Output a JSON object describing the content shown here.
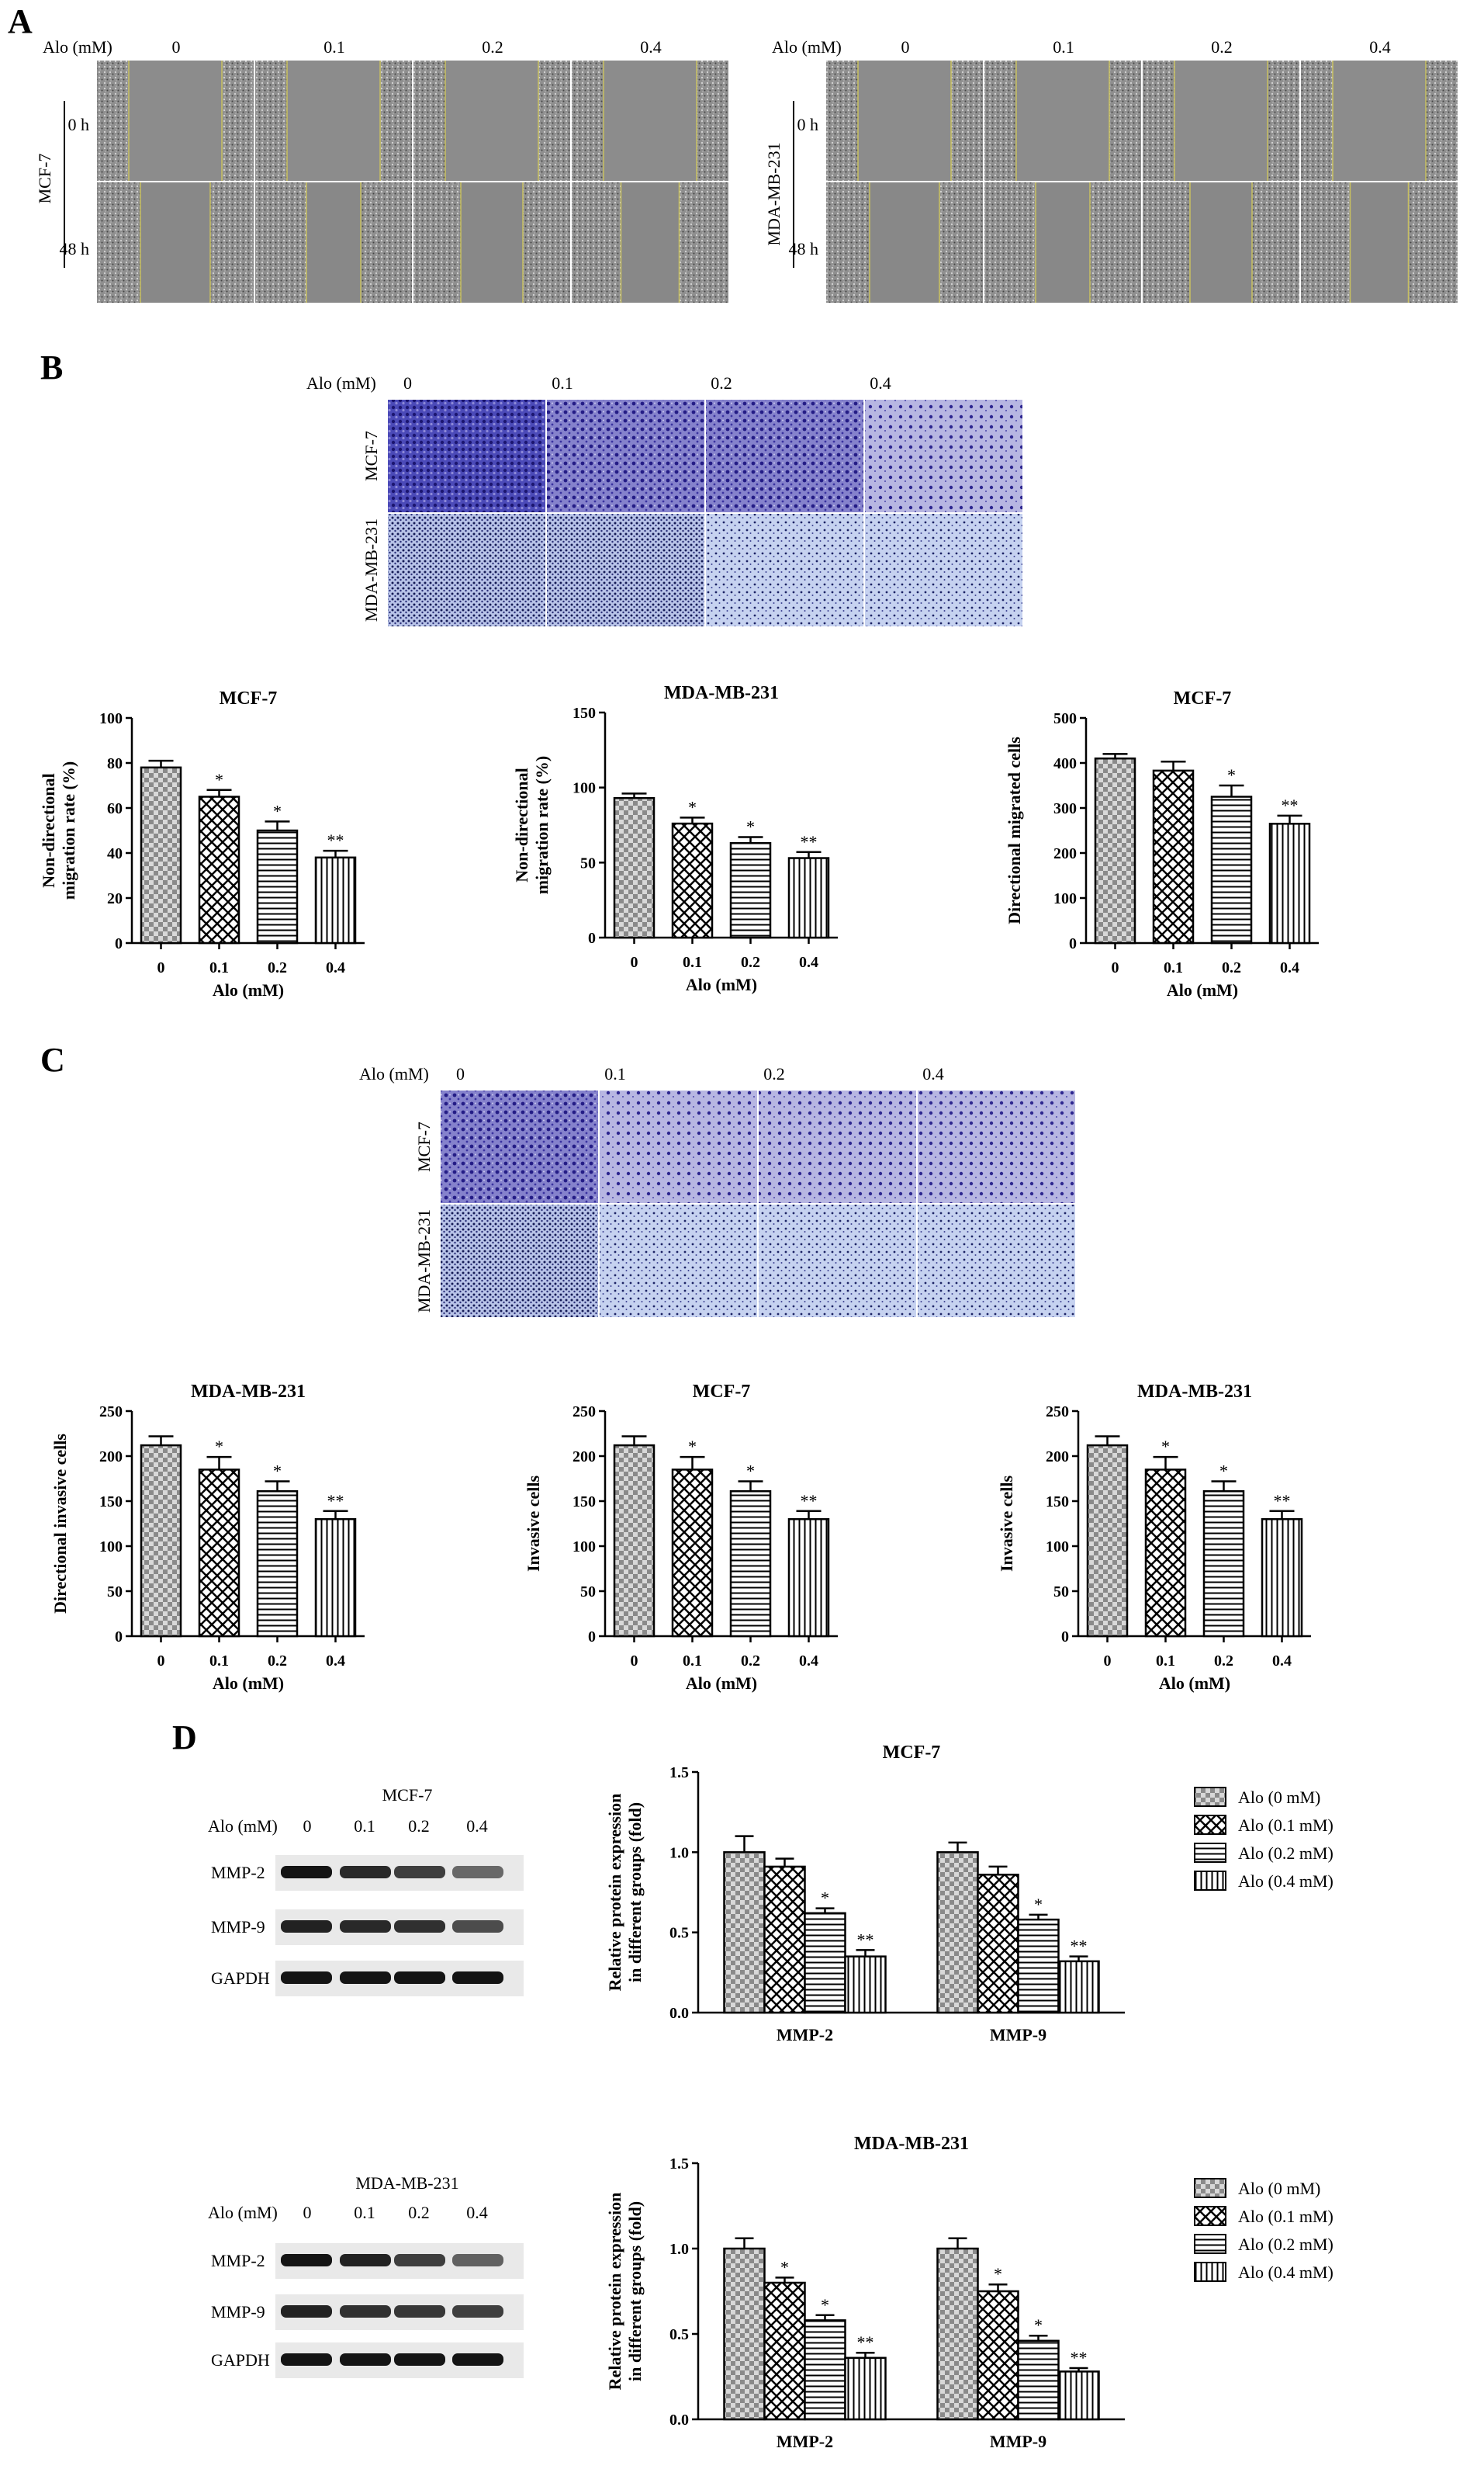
{
  "panels": {
    "A": {
      "letter": "A",
      "dose_label": "Alo (mM)",
      "doses": [
        "0",
        "0.1",
        "0.2",
        "0.4"
      ],
      "time_labels": [
        "0 h",
        "48 h"
      ],
      "cell_lines": [
        "MCF-7",
        "MDA-MB-231"
      ]
    },
    "B": {
      "letter": "B",
      "dose_label": "Alo (mM)",
      "doses": [
        "0",
        "0.1",
        "0.2",
        "0.4"
      ],
      "row_labels": [
        "MCF-7",
        "MDA-MB-231"
      ]
    },
    "C": {
      "letter": "C",
      "dose_label": "Alo (mM)",
      "doses": [
        "0",
        "0.1",
        "0.2",
        "0.4"
      ],
      "row_labels": [
        "MCF-7",
        "MDA-MB-231"
      ]
    },
    "D": {
      "letter": "D",
      "blots": [
        {
          "cell_line": "MCF-7",
          "dose_label": "Alo (mM)",
          "doses": [
            "0",
            "0.1",
            "0.2",
            "0.4"
          ],
          "bands": [
            "MMP-2",
            "MMP-9",
            "GAPDH"
          ]
        },
        {
          "cell_line": "MDA-MB-231",
          "dose_label": "Alo (mM)",
          "doses": [
            "0",
            "0.1",
            "0.2",
            "0.4"
          ],
          "bands": [
            "MMP-2",
            "MMP-9",
            "GAPDH"
          ]
        }
      ]
    }
  },
  "chart_data": [
    {
      "type": "bar",
      "panel": "B",
      "title": "MCF-7",
      "xlabel": "Alo (mM)",
      "ylabel": "Non-directional migration rate (%)",
      "ylim": [
        0,
        100
      ],
      "yticks": [
        0,
        20,
        40,
        60,
        80,
        100
      ],
      "categories": [
        "0",
        "0.1",
        "0.2",
        "0.4"
      ],
      "values": [
        78,
        65,
        50,
        38
      ],
      "errors": [
        3,
        3,
        4,
        3
      ],
      "significance": [
        "",
        "*",
        "*",
        "**"
      ]
    },
    {
      "type": "bar",
      "panel": "B",
      "title": "MDA-MB-231",
      "xlabel": "Alo (mM)",
      "ylabel": "Non-directional migration rate (%)",
      "ylim": [
        0,
        150
      ],
      "yticks": [
        0,
        50,
        100,
        150
      ],
      "categories": [
        "0",
        "0.1",
        "0.2",
        "0.4"
      ],
      "values": [
        93,
        76,
        63,
        53
      ],
      "errors": [
        3,
        4,
        4,
        4
      ],
      "significance": [
        "",
        "*",
        "*",
        "**"
      ]
    },
    {
      "type": "bar",
      "panel": "B",
      "title": "MCF-7",
      "xlabel": "Alo (mM)",
      "ylabel": "Directional migrated cells",
      "ylim": [
        0,
        500
      ],
      "yticks": [
        0,
        100,
        200,
        300,
        400,
        500
      ],
      "categories": [
        "0",
        "0.1",
        "0.2",
        "0.4"
      ],
      "values": [
        410,
        383,
        325,
        265
      ],
      "errors": [
        10,
        20,
        25,
        18
      ],
      "significance": [
        "",
        "",
        "*",
        "**"
      ]
    },
    {
      "type": "bar",
      "panel": "C",
      "title": "MDA-MB-231",
      "xlabel": "Alo (mM)",
      "ylabel": "Directional invasive cells",
      "ylim": [
        0,
        250
      ],
      "yticks": [
        0,
        50,
        100,
        150,
        200,
        250
      ],
      "categories": [
        "0",
        "0.1",
        "0.2",
        "0.4"
      ],
      "values": [
        212,
        185,
        161,
        130
      ],
      "errors": [
        10,
        14,
        11,
        9
      ],
      "significance": [
        "",
        "*",
        "*",
        "**"
      ]
    },
    {
      "type": "bar",
      "panel": "C",
      "title": "MCF-7",
      "xlabel": "Alo (mM)",
      "ylabel": "Invasive cells",
      "ylim": [
        0,
        250
      ],
      "yticks": [
        0,
        50,
        100,
        150,
        200,
        250
      ],
      "categories": [
        "0",
        "0.1",
        "0.2",
        "0.4"
      ],
      "values": [
        212,
        185,
        161,
        130
      ],
      "errors": [
        10,
        14,
        11,
        9
      ],
      "significance": [
        "",
        "*",
        "*",
        "**"
      ]
    },
    {
      "type": "bar",
      "panel": "C",
      "title": "MDA-MB-231",
      "xlabel": "Alo (mM)",
      "ylabel": "Invasive cells",
      "ylim": [
        0,
        250
      ],
      "yticks": [
        0,
        50,
        100,
        150,
        200,
        250
      ],
      "categories": [
        "0",
        "0.1",
        "0.2",
        "0.4"
      ],
      "values": [
        212,
        185,
        161,
        130
      ],
      "errors": [
        10,
        14,
        11,
        9
      ],
      "significance": [
        "",
        "*",
        "*",
        "**"
      ]
    },
    {
      "type": "bar",
      "panel": "D",
      "title": "MCF-7",
      "xlabel": "",
      "ylabel": "Relative protein expression in different groups (fold)",
      "ylim": [
        0,
        1.5
      ],
      "yticks": [
        "0.0",
        "0.5",
        "1.0",
        "1.5"
      ],
      "categories": [
        "MMP-2",
        "MMP-9"
      ],
      "series": [
        {
          "name": "Alo (0 mM)",
          "values": [
            1.0,
            1.0
          ],
          "errors": [
            0.1,
            0.06
          ],
          "significance": [
            "",
            ""
          ]
        },
        {
          "name": "Alo (0.1 mM)",
          "values": [
            0.91,
            0.86
          ],
          "errors": [
            0.05,
            0.05
          ],
          "significance": [
            "",
            ""
          ]
        },
        {
          "name": "Alo (0.2 mM)",
          "values": [
            0.62,
            0.58
          ],
          "errors": [
            0.03,
            0.03
          ],
          "significance": [
            "*",
            "*"
          ]
        },
        {
          "name": "Alo (0.4 mM)",
          "values": [
            0.35,
            0.32
          ],
          "errors": [
            0.04,
            0.03
          ],
          "significance": [
            "**",
            "**"
          ]
        }
      ],
      "legend": "right"
    },
    {
      "type": "bar",
      "panel": "D",
      "title": "MDA-MB-231",
      "xlabel": "",
      "ylabel": "Relative protein expression in different groups (fold)",
      "ylim": [
        0,
        1.5
      ],
      "yticks": [
        "0.0",
        "0.5",
        "1.0",
        "1.5"
      ],
      "categories": [
        "MMP-2",
        "MMP-9"
      ],
      "series": [
        {
          "name": "Alo (0 mM)",
          "values": [
            1.0,
            1.0
          ],
          "errors": [
            0.06,
            0.06
          ],
          "significance": [
            "",
            ""
          ]
        },
        {
          "name": "Alo (0.1 mM)",
          "values": [
            0.8,
            0.75
          ],
          "errors": [
            0.03,
            0.04
          ],
          "significance": [
            "*",
            "*"
          ]
        },
        {
          "name": "Alo (0.2 mM)",
          "values": [
            0.58,
            0.46
          ],
          "errors": [
            0.03,
            0.03
          ],
          "significance": [
            "*",
            "*"
          ]
        },
        {
          "name": "Alo (0.4 mM)",
          "values": [
            0.36,
            0.28
          ],
          "errors": [
            0.03,
            0.02
          ],
          "significance": [
            "**",
            "**"
          ]
        }
      ],
      "legend": "right"
    }
  ]
}
